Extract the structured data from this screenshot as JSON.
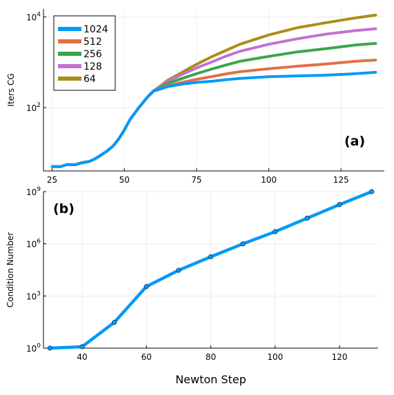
{
  "chart_data": [
    {
      "type": "line",
      "panel_label": "(a)",
      "ylabel": "Iters CG",
      "xlabel": "",
      "xlim": [
        22,
        140
      ],
      "yscale": "log",
      "ylim": [
        4,
        15000
      ],
      "xticks": [
        25,
        50,
        75,
        100,
        125
      ],
      "xtick_labels": [
        "25",
        "50",
        "75",
        "100",
        "125"
      ],
      "yticks": [
        100,
        10000
      ],
      "ytick_labels": [
        {
          "base": "10",
          "exp": "2"
        },
        {
          "base": "10",
          "exp": "4"
        }
      ],
      "grid": true,
      "legend_position": "top-left",
      "common": {
        "x": [
          25,
          28,
          30,
          33,
          35,
          38,
          40,
          42,
          44,
          46,
          48,
          50,
          52,
          55,
          58,
          60
        ],
        "y": [
          5,
          5,
          5.5,
          5.5,
          6,
          6.5,
          7.5,
          9,
          11,
          14,
          20,
          32,
          55,
          100,
          170,
          230
        ]
      },
      "series": [
        {
          "name": "1024",
          "color": "#009af9",
          "x": [
            60,
            65,
            70,
            75,
            80,
            85,
            90,
            100,
            110,
            120,
            130,
            137
          ],
          "y": [
            230,
            290,
            330,
            360,
            380,
            410,
            440,
            480,
            500,
            520,
            560,
            600
          ]
        },
        {
          "name": "512",
          "color": "#e26f46",
          "x": [
            60,
            65,
            70,
            75,
            80,
            85,
            90,
            100,
            110,
            120,
            130,
            137
          ],
          "y": [
            230,
            300,
            360,
            420,
            480,
            550,
            620,
            720,
            820,
            920,
            1050,
            1120
          ]
        },
        {
          "name": "256",
          "color": "#3da44d",
          "x": [
            60,
            65,
            70,
            75,
            80,
            85,
            90,
            100,
            110,
            120,
            130,
            137
          ],
          "y": [
            230,
            340,
            440,
            560,
            700,
            860,
            1050,
            1350,
            1700,
            2000,
            2400,
            2600
          ]
        },
        {
          "name": "128",
          "color": "#c271d2",
          "x": [
            60,
            65,
            70,
            75,
            80,
            85,
            90,
            100,
            110,
            120,
            130,
            137
          ],
          "y": [
            230,
            380,
            540,
            750,
            1000,
            1350,
            1750,
            2500,
            3300,
            4200,
            5000,
            5500
          ]
        },
        {
          "name": "64",
          "color": "#ac8d18",
          "x": [
            60,
            65,
            70,
            75,
            80,
            85,
            90,
            100,
            110,
            120,
            130,
            137
          ],
          "y": [
            230,
            400,
            600,
            900,
            1300,
            1800,
            2500,
            4000,
            5800,
            7500,
            9500,
            11000
          ]
        }
      ]
    },
    {
      "type": "line",
      "panel_label": "(b)",
      "ylabel": "Condition Number",
      "xlabel": "Newton Step",
      "xlim": [
        28,
        132
      ],
      "yscale": "log",
      "ylim": [
        1,
        1000000000
      ],
      "xticks": [
        40,
        60,
        80,
        100,
        120
      ],
      "xtick_labels": [
        "40",
        "60",
        "80",
        "100",
        "120"
      ],
      "yticks": [
        1,
        1000,
        1000000,
        1000000000
      ],
      "ytick_labels": [
        {
          "base": "10",
          "exp": "0"
        },
        {
          "base": "10",
          "exp": "3"
        },
        {
          "base": "10",
          "exp": "6"
        },
        {
          "base": "10",
          "exp": "9"
        }
      ],
      "grid": true,
      "series": [
        {
          "color": "#009af9",
          "x": [
            30,
            40,
            50,
            60,
            70,
            80,
            90,
            100,
            110,
            120,
            130
          ],
          "y": [
            1,
            1.2,
            30,
            3500,
            30000,
            180000,
            1000000,
            5000000,
            30000000,
            180000000,
            1000000000
          ]
        }
      ]
    }
  ]
}
